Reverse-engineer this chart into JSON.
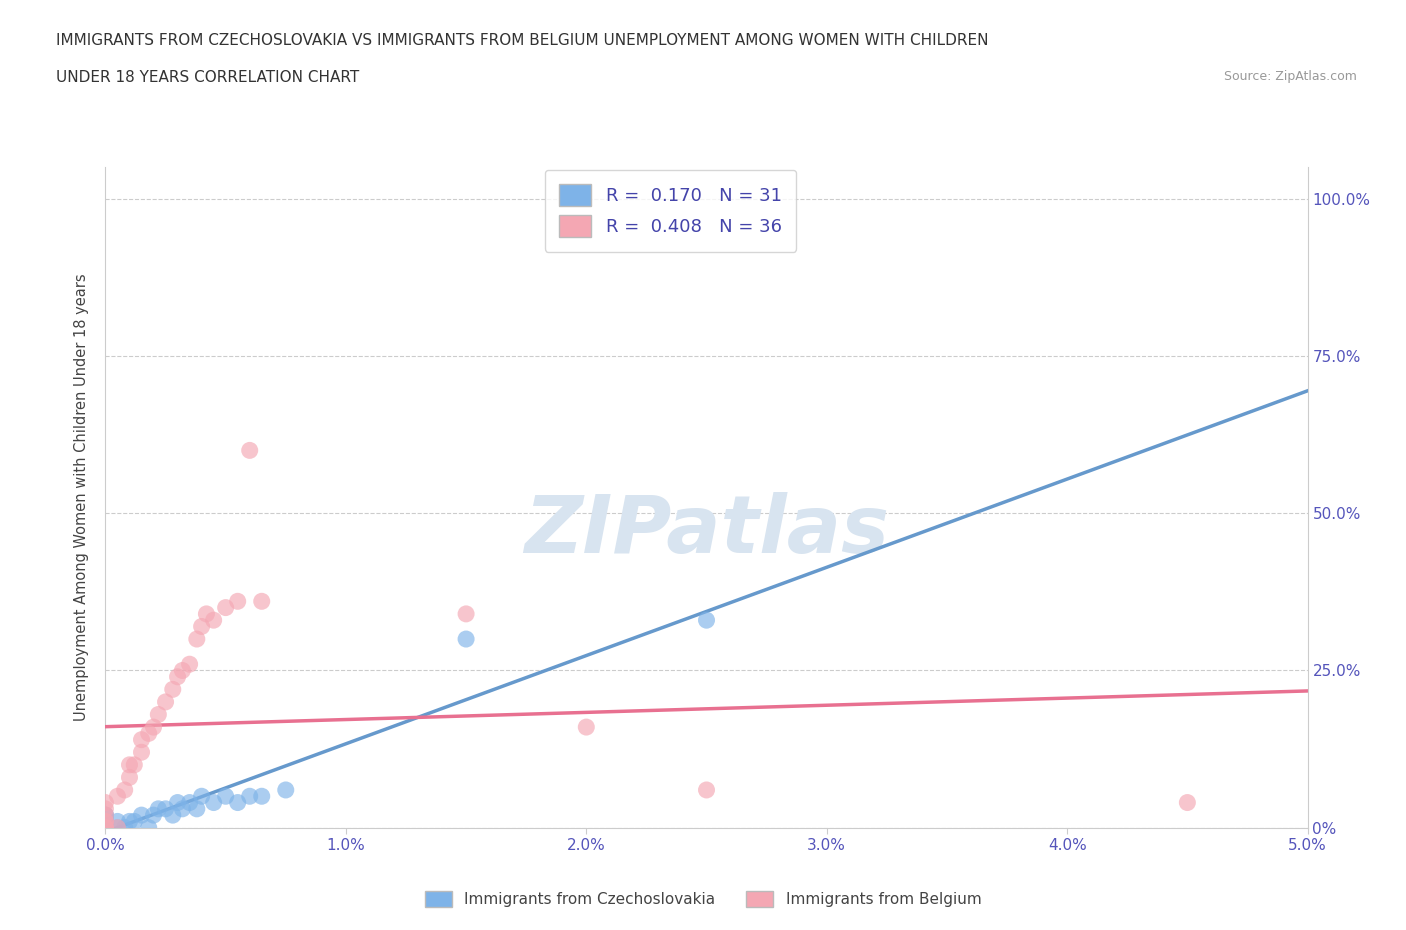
{
  "title_line1": "IMMIGRANTS FROM CZECHOSLOVAKIA VS IMMIGRANTS FROM BELGIUM UNEMPLOYMENT AMONG WOMEN WITH CHILDREN",
  "title_line2": "UNDER 18 YEARS CORRELATION CHART",
  "source_text": "Source: ZipAtlas.com",
  "ylabel_left": "Unemployment Among Women with Children Under 18 years",
  "R_czech": 0.17,
  "N_czech": 31,
  "R_belgium": 0.408,
  "N_belgium": 36,
  "color_czech": "#7EB3E8",
  "color_belgium": "#F4A7B3",
  "color_czech_line": "#6699CC",
  "color_belgium_line": "#E87090",
  "watermark_color": "#D8E4F0",
  "scatter_czech_x": [
    0.0,
    0.0,
    0.0,
    0.0,
    0.0,
    0.0,
    0.0,
    0.05,
    0.05,
    0.08,
    0.1,
    0.12,
    0.15,
    0.18,
    0.2,
    0.22,
    0.25,
    0.28,
    0.3,
    0.32,
    0.35,
    0.38,
    0.4,
    0.45,
    0.5,
    0.55,
    0.6,
    0.65,
    0.75,
    1.5,
    2.5
  ],
  "scatter_czech_y": [
    0.0,
    0.0,
    0.0,
    0.01,
    0.01,
    0.02,
    0.02,
    0.0,
    0.01,
    0.0,
    0.01,
    0.01,
    0.02,
    0.0,
    0.02,
    0.03,
    0.03,
    0.02,
    0.04,
    0.03,
    0.04,
    0.03,
    0.05,
    0.04,
    0.05,
    0.04,
    0.05,
    0.05,
    0.06,
    0.3,
    0.33
  ],
  "scatter_belgium_x": [
    0.0,
    0.0,
    0.0,
    0.0,
    0.0,
    0.0,
    0.0,
    0.0,
    0.05,
    0.05,
    0.08,
    0.1,
    0.1,
    0.12,
    0.15,
    0.15,
    0.18,
    0.2,
    0.22,
    0.25,
    0.28,
    0.3,
    0.32,
    0.35,
    0.38,
    0.4,
    0.42,
    0.45,
    0.5,
    0.55,
    0.6,
    0.65,
    1.5,
    2.0,
    2.5,
    4.5
  ],
  "scatter_belgium_y": [
    0.0,
    0.0,
    0.0,
    0.01,
    0.01,
    0.02,
    0.03,
    0.04,
    0.0,
    0.05,
    0.06,
    0.08,
    0.1,
    0.1,
    0.12,
    0.14,
    0.15,
    0.16,
    0.18,
    0.2,
    0.22,
    0.24,
    0.25,
    0.26,
    0.3,
    0.32,
    0.34,
    0.33,
    0.35,
    0.36,
    0.6,
    0.36,
    0.34,
    0.16,
    0.06,
    0.04
  ],
  "xlim": [
    0.0,
    5.0
  ],
  "ylim": [
    0.0,
    1.05
  ],
  "xticks": [
    0.0,
    1.0,
    2.0,
    3.0,
    4.0,
    5.0
  ],
  "xticklabels": [
    "0.0%",
    "1.0%",
    "2.0%",
    "3.0%",
    "4.0%",
    "5.0%"
  ],
  "yticks": [
    0.0,
    0.25,
    0.5,
    0.75,
    1.0
  ],
  "yticklabels_right": [
    "0%",
    "25.0%",
    "50.0%",
    "75.0%",
    "100.0%"
  ],
  "grid_color": "#CCCCCC",
  "background_color": "#FFFFFF",
  "legend_label_czech": "Immigrants from Czechoslovakia",
  "legend_label_belgium": "Immigrants from Belgium",
  "tick_color": "#5555BB"
}
